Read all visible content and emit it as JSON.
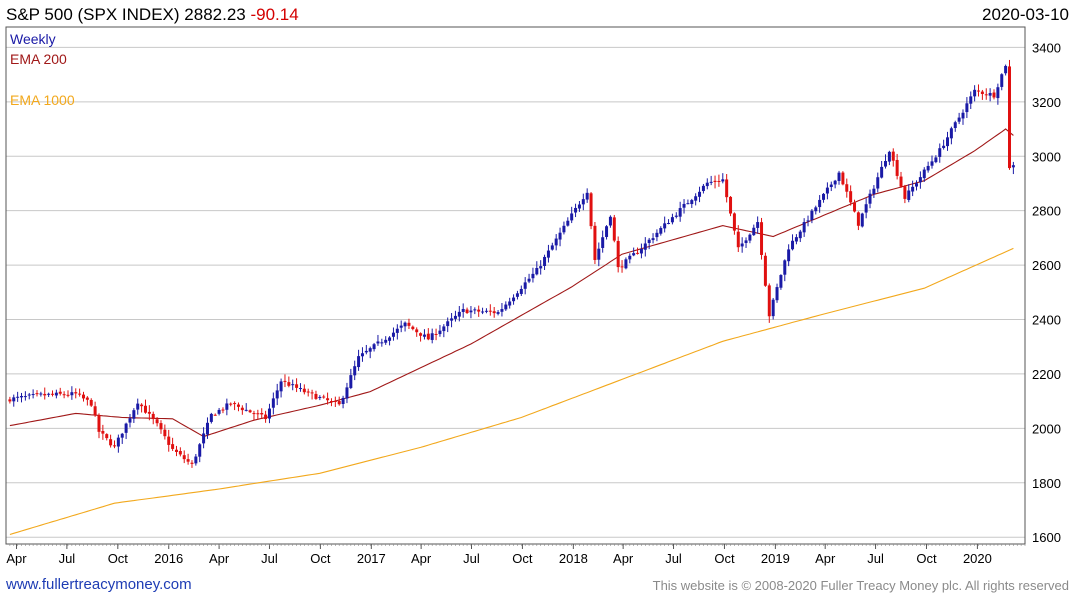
{
  "header": {
    "title": "S&P 500 (SPX INDEX)",
    "last": "2882.23",
    "change": "-90.14",
    "date": "2020-03-10"
  },
  "footer": {
    "site": "www.fullertreacymoney.com",
    "copyright": "This website is © 2008-2020 Fuller Treacy Money plc. All rights reserved"
  },
  "colors": {
    "up": "#1a1aa6",
    "down": "#e01010",
    "ema200": "#a01818",
    "ema1000": "#f2a81c",
    "grid": "#c8c8c8"
  },
  "chart_data": {
    "type": "line",
    "chart_style": "candlestick",
    "interval": "Weekly",
    "grid": true,
    "legend_position": "top-left",
    "legend": [
      "Weekly",
      "EMA 200",
      "EMA 1000"
    ],
    "x_ticks": [
      "Apr",
      "Jul",
      "Oct",
      "2016",
      "Apr",
      "Jul",
      "Oct",
      "2017",
      "Apr",
      "Jul",
      "Oct",
      "2018",
      "Apr",
      "Jul",
      "Oct",
      "2019",
      "Apr",
      "Jul",
      "Oct",
      "2020"
    ],
    "y_ticks": [
      1600,
      1800,
      2000,
      2200,
      2400,
      2600,
      2800,
      3000,
      3200,
      3400
    ],
    "ylim": [
      1575,
      3475
    ],
    "xlim": [
      "2015-03-13",
      "2020-03-27"
    ],
    "tick_dates": [
      "2015-04-01",
      "2015-07-01",
      "2015-10-01",
      "2016-01-01",
      "2016-04-01",
      "2016-07-01",
      "2016-10-01",
      "2017-01-01",
      "2017-04-01",
      "2017-07-01",
      "2017-10-01",
      "2018-01-01",
      "2018-04-01",
      "2018-07-01",
      "2018-10-01",
      "2019-01-01",
      "2019-04-01",
      "2019-07-01",
      "2019-10-01",
      "2020-01-01"
    ],
    "close_anchors": [
      [
        "2015-03-20",
        2108
      ],
      [
        "2015-05-15",
        2122
      ],
      [
        "2015-07-17",
        2126
      ],
      [
        "2015-08-14",
        2091
      ],
      [
        "2015-08-28",
        1988
      ],
      [
        "2015-09-25",
        1931
      ],
      [
        "2015-11-06",
        2099
      ],
      [
        "2015-12-11",
        2012
      ],
      [
        "2016-01-08",
        1922
      ],
      [
        "2016-02-12",
        1865
      ],
      [
        "2016-03-18",
        2049
      ],
      [
        "2016-04-22",
        2091
      ],
      [
        "2016-06-24",
        2037
      ],
      [
        "2016-07-22",
        2175
      ],
      [
        "2016-09-09",
        2128
      ],
      [
        "2016-11-04",
        2085
      ],
      [
        "2016-12-09",
        2260
      ],
      [
        "2017-03-03",
        2383
      ],
      [
        "2017-04-14",
        2329
      ],
      [
        "2017-06-16",
        2433
      ],
      [
        "2017-08-18",
        2426
      ],
      [
        "2017-10-27",
        2581
      ],
      [
        "2018-01-26",
        2873
      ],
      [
        "2018-02-09",
        2620
      ],
      [
        "2018-03-09",
        2786
      ],
      [
        "2018-03-23",
        2588
      ],
      [
        "2018-05-04",
        2663
      ],
      [
        "2018-08-31",
        2902
      ],
      [
        "2018-09-28",
        2914
      ],
      [
        "2018-10-26",
        2658
      ],
      [
        "2018-11-30",
        2760
      ],
      [
        "2018-12-21",
        2416
      ],
      [
        "2019-01-25",
        2665
      ],
      [
        "2019-04-26",
        2940
      ],
      [
        "2019-05-31",
        2752
      ],
      [
        "2019-07-26",
        3025
      ],
      [
        "2019-08-23",
        2847
      ],
      [
        "2019-10-25",
        3022
      ],
      [
        "2019-12-27",
        3240
      ],
      [
        "2020-01-31",
        3225
      ],
      [
        "2020-02-21",
        3337
      ],
      [
        "2020-02-28",
        2954
      ],
      [
        "2020-03-06",
        2972
      ],
      [
        "2020-03-10",
        2882
      ]
    ],
    "ema200_anchors": [
      [
        "2015-03-20",
        2010
      ],
      [
        "2015-07-17",
        2055
      ],
      [
        "2015-10-09",
        2040
      ],
      [
        "2016-01-08",
        2035
      ],
      [
        "2016-03-04",
        1970
      ],
      [
        "2016-06-03",
        2030
      ],
      [
        "2016-09-30",
        2085
      ],
      [
        "2016-12-30",
        2135
      ],
      [
        "2017-06-30",
        2310
      ],
      [
        "2017-12-29",
        2520
      ],
      [
        "2018-03-30",
        2640
      ],
      [
        "2018-09-28",
        2745
      ],
      [
        "2018-12-28",
        2705
      ],
      [
        "2019-06-28",
        2860
      ],
      [
        "2019-09-27",
        2910
      ],
      [
        "2019-12-27",
        3020
      ],
      [
        "2020-02-21",
        3100
      ],
      [
        "2020-03-10",
        3070
      ]
    ],
    "ema1000_anchors": [
      [
        "2015-03-20",
        1610
      ],
      [
        "2015-09-25",
        1725
      ],
      [
        "2016-03-25",
        1775
      ],
      [
        "2016-09-30",
        1835
      ],
      [
        "2017-03-31",
        1930
      ],
      [
        "2017-09-29",
        2040
      ],
      [
        "2018-03-30",
        2180
      ],
      [
        "2018-09-28",
        2320
      ],
      [
        "2019-03-29",
        2420
      ],
      [
        "2019-09-27",
        2515
      ],
      [
        "2020-03-10",
        2665
      ]
    ]
  }
}
